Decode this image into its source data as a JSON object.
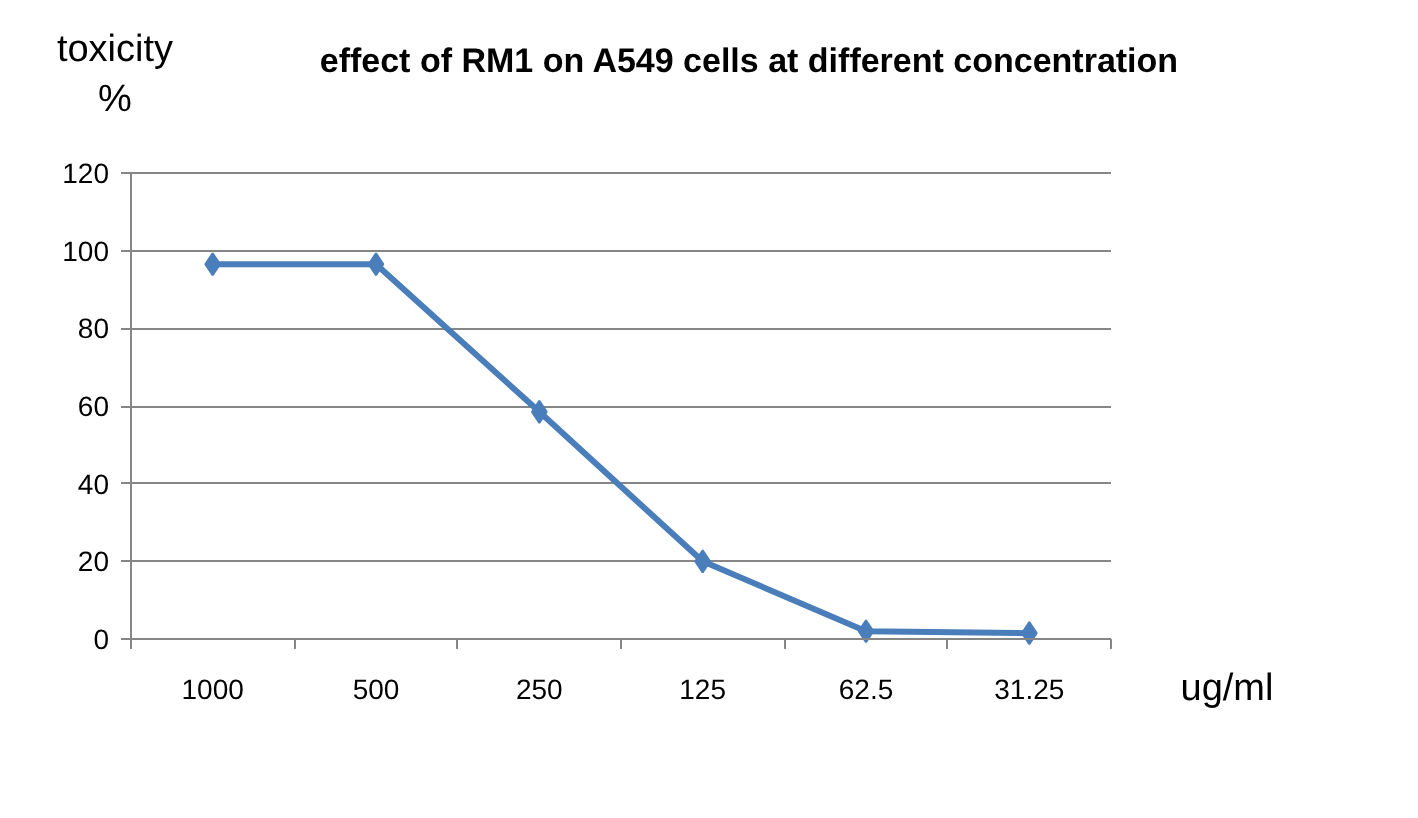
{
  "chart_data": {
    "type": "line",
    "title": "effect of  RM1  on A549 cells at different concentration",
    "ylabel": "toxicity\n%",
    "xlabel": "ug/ml",
    "categories": [
      "1000",
      "500",
      "250",
      "125",
      "62.5",
      "31.25"
    ],
    "series": [
      {
        "color": "#4a7ebb",
        "values": [
          96.5,
          96.5,
          58.5,
          20,
          2,
          1.5
        ]
      }
    ],
    "ylim": [
      0,
      120
    ],
    "yticks": [
      0,
      20,
      40,
      60,
      80,
      100,
      120
    ],
    "grid": "y",
    "marker": "diamond",
    "line_style": "solid"
  }
}
